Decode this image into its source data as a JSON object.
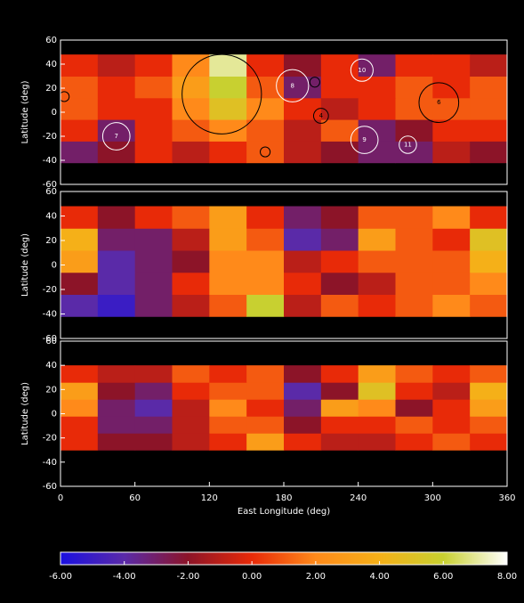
{
  "chart_data": [
    {
      "type": "heatmap",
      "ylabel": "Latitude (deg)",
      "xlim": [
        0,
        360
      ],
      "ylim": [
        -60,
        60
      ],
      "yticks": [
        -60,
        -40,
        -20,
        0,
        20,
        40,
        60
      ],
      "x_edges": [
        0,
        30,
        60,
        90,
        120,
        150,
        180,
        210,
        240,
        270,
        300,
        330,
        360
      ],
      "y_edges": [
        -42,
        -24,
        -6,
        12,
        30,
        48
      ],
      "values": [
        [
          -3,
          -2,
          0,
          -1,
          0,
          1,
          -1,
          -2,
          -3,
          -3,
          -1,
          -2
        ],
        [
          0,
          -3,
          0,
          1,
          2,
          1,
          -1,
          1,
          -3,
          -2,
          0,
          0
        ],
        [
          1,
          0,
          0,
          2,
          5,
          2,
          0,
          -1,
          0,
          1,
          1,
          1
        ],
        [
          1,
          0,
          1,
          3,
          6,
          1,
          -3,
          0,
          0,
          1,
          0,
          1
        ],
        [
          0,
          -1,
          0,
          2,
          7,
          0,
          -2,
          0,
          -3,
          0,
          0,
          -1
        ]
      ],
      "features": [
        {
          "x": 130,
          "y": 15,
          "r": 32,
          "color": "#000000"
        },
        {
          "x": 187,
          "y": 22,
          "r": 13,
          "color": "#ffffff",
          "label": "8"
        },
        {
          "x": 243,
          "y": 35,
          "r": 9,
          "color": "#ffffff",
          "label": "10"
        },
        {
          "x": 305,
          "y": 8,
          "r": 16,
          "color": "#000000",
          "label": "6"
        },
        {
          "x": 45,
          "y": -20,
          "r": 11,
          "color": "#ffffff",
          "label": "7"
        },
        {
          "x": 245,
          "y": -23,
          "r": 11,
          "color": "#ffffff",
          "label": "9"
        },
        {
          "x": 280,
          "y": -27,
          "r": 7,
          "color": "#ffffff",
          "label": "11"
        },
        {
          "x": 210,
          "y": -3,
          "r": 6,
          "color": "#000000",
          "label": "4"
        },
        {
          "x": 205,
          "y": 25,
          "r": 4,
          "color": "#000000"
        },
        {
          "x": 165,
          "y": -33,
          "r": 4,
          "color": "#000000"
        },
        {
          "x": 3,
          "y": 13,
          "r": 4,
          "color": "#000000"
        }
      ]
    },
    {
      "type": "heatmap",
      "ylabel": "Latitude (deg)",
      "xlim": [
        0,
        360
      ],
      "ylim": [
        -60,
        60
      ],
      "yticks": [
        -60,
        -40,
        -20,
        0,
        20,
        40,
        60
      ],
      "x_edges": [
        0,
        30,
        60,
        90,
        120,
        150,
        180,
        210,
        240,
        270,
        300,
        330,
        360
      ],
      "y_edges": [
        -42,
        -24,
        -6,
        12,
        30,
        48
      ],
      "values": [
        [
          -4,
          -5,
          -3,
          -1,
          1,
          6,
          -1,
          1,
          0,
          1,
          2,
          1
        ],
        [
          -2,
          -4,
          -3,
          0,
          2,
          2,
          0,
          -2,
          -1,
          1,
          1,
          2
        ],
        [
          3,
          -4,
          -3,
          -2,
          2,
          2,
          -1,
          0,
          1,
          1,
          1,
          4
        ],
        [
          4,
          -3,
          -3,
          -1,
          3,
          1,
          -4,
          -3,
          3,
          1,
          0,
          5
        ],
        [
          0,
          -2,
          0,
          1,
          3,
          0,
          -3,
          -2,
          1,
          1,
          2,
          0
        ]
      ]
    },
    {
      "type": "heatmap",
      "ylabel": "Latitude (deg)",
      "xlabel": "East Longitude (deg)",
      "xlim": [
        0,
        360
      ],
      "ylim": [
        -60,
        60
      ],
      "yticks": [
        -60,
        -40,
        -20,
        0,
        20,
        40,
        60
      ],
      "xticks": [
        0,
        60,
        120,
        180,
        240,
        300,
        360
      ],
      "x_edges": [
        0,
        30,
        60,
        90,
        120,
        150,
        180,
        210,
        240,
        270,
        300,
        330,
        360
      ],
      "y_edges": [
        -30,
        -16,
        -2,
        12,
        26,
        40
      ],
      "values": [
        [
          0,
          -2,
          -2,
          -1,
          0,
          3,
          0,
          -1,
          -1,
          0,
          1,
          0
        ],
        [
          0,
          -3,
          -3,
          -1,
          1,
          1,
          -2,
          0,
          0,
          1,
          0,
          1
        ],
        [
          2,
          -3,
          -4,
          -1,
          2,
          0,
          -3,
          3,
          2,
          -2,
          0,
          3
        ],
        [
          3,
          -2,
          -3,
          0,
          1,
          1,
          -4,
          -2,
          5,
          0,
          -1,
          4
        ],
        [
          0,
          -1,
          -1,
          1,
          0,
          1,
          -2,
          0,
          3,
          1,
          0,
          1
        ]
      ]
    }
  ],
  "colorbar": {
    "vlim": [
      -6,
      8
    ],
    "colorscale": [
      "#1a10e0",
      "#5a2aa8",
      "#8c1428",
      "#e82a08",
      "#ff8a1a",
      "#f5b018",
      "#c8d030",
      "#ffffff"
    ],
    "ticks": [
      {
        "value": -6,
        "label": "-6.00"
      },
      {
        "value": -4,
        "label": "-4.00"
      },
      {
        "value": -2,
        "label": "-2.00"
      },
      {
        "value": 0,
        "label": "0.00"
      },
      {
        "value": 2,
        "label": "2.00"
      },
      {
        "value": 4,
        "label": "4.00"
      },
      {
        "value": 6,
        "label": "6.00"
      },
      {
        "value": 8,
        "label": "8.00"
      }
    ]
  }
}
